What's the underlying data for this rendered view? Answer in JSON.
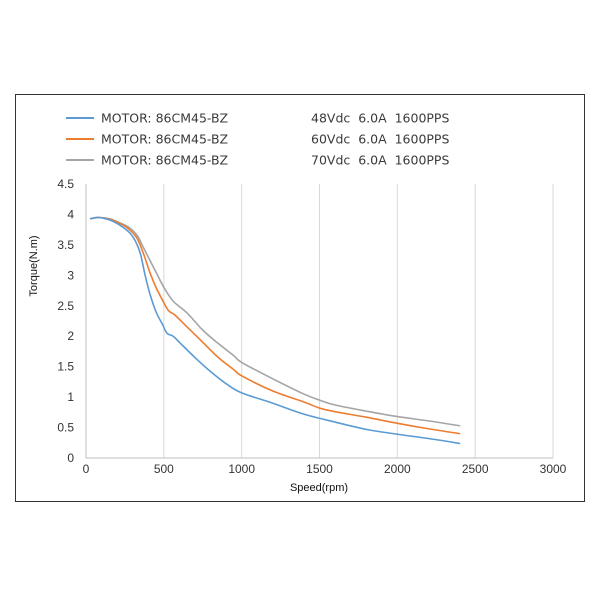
{
  "chart_data": {
    "type": "line",
    "xlabel": "Speed(rpm)",
    "ylabel": "Torque(N.m)",
    "xlim": [
      0,
      3000
    ],
    "ylim": [
      0,
      4.5
    ],
    "x_ticks": [
      "0",
      "500",
      "1000",
      "1500",
      "2000",
      "2500",
      "3000"
    ],
    "y_ticks": [
      "0",
      "0.5",
      "1",
      "1.5",
      "2",
      "2.5",
      "3",
      "3.5",
      "4",
      "4.5"
    ],
    "grid": "vertical",
    "legend_position": "top",
    "series": [
      {
        "name": "MOTOR: 86CM45-BZ",
        "spec": "48Vdc  6.0A  1600PPS",
        "color": "#5b9bd5",
        "points": [
          [
            30,
            3.93
          ],
          [
            80,
            3.95
          ],
          [
            150,
            3.91
          ],
          [
            220,
            3.82
          ],
          [
            280,
            3.7
          ],
          [
            320,
            3.55
          ],
          [
            350,
            3.35
          ],
          [
            380,
            3.0
          ],
          [
            410,
            2.7
          ],
          [
            450,
            2.4
          ],
          [
            490,
            2.2
          ],
          [
            520,
            2.05
          ],
          [
            560,
            2.0
          ],
          [
            600,
            1.9
          ],
          [
            700,
            1.65
          ],
          [
            800,
            1.42
          ],
          [
            900,
            1.22
          ],
          [
            1000,
            1.07
          ],
          [
            1200,
            0.9
          ],
          [
            1400,
            0.72
          ],
          [
            1600,
            0.59
          ],
          [
            1800,
            0.47
          ],
          [
            2000,
            0.39
          ],
          [
            2200,
            0.32
          ],
          [
            2400,
            0.24
          ]
        ]
      },
      {
        "name": "MOTOR: 86CM45-BZ",
        "spec": "60Vdc  6.0A  1600PPS",
        "color": "#ed7d31",
        "points": [
          [
            30,
            3.93
          ],
          [
            80,
            3.95
          ],
          [
            150,
            3.92
          ],
          [
            220,
            3.85
          ],
          [
            280,
            3.75
          ],
          [
            330,
            3.6
          ],
          [
            370,
            3.35
          ],
          [
            410,
            3.05
          ],
          [
            450,
            2.8
          ],
          [
            490,
            2.6
          ],
          [
            530,
            2.42
          ],
          [
            570,
            2.35
          ],
          [
            650,
            2.15
          ],
          [
            750,
            1.9
          ],
          [
            850,
            1.65
          ],
          [
            950,
            1.45
          ],
          [
            1000,
            1.35
          ],
          [
            1200,
            1.1
          ],
          [
            1400,
            0.92
          ],
          [
            1500,
            0.82
          ],
          [
            1600,
            0.76
          ],
          [
            1800,
            0.67
          ],
          [
            2000,
            0.57
          ],
          [
            2200,
            0.48
          ],
          [
            2400,
            0.4
          ]
        ]
      },
      {
        "name": "MOTOR: 86CM45-BZ",
        "spec": "70Vdc  6.0A  1600PPS",
        "color": "#a5a5a5",
        "points": [
          [
            30,
            3.93
          ],
          [
            80,
            3.95
          ],
          [
            150,
            3.93
          ],
          [
            220,
            3.86
          ],
          [
            280,
            3.78
          ],
          [
            330,
            3.65
          ],
          [
            370,
            3.45
          ],
          [
            410,
            3.25
          ],
          [
            450,
            3.05
          ],
          [
            490,
            2.85
          ],
          [
            530,
            2.68
          ],
          [
            570,
            2.55
          ],
          [
            650,
            2.38
          ],
          [
            750,
            2.1
          ],
          [
            850,
            1.88
          ],
          [
            950,
            1.68
          ],
          [
            1000,
            1.57
          ],
          [
            1200,
            1.3
          ],
          [
            1400,
            1.05
          ],
          [
            1500,
            0.95
          ],
          [
            1600,
            0.87
          ],
          [
            1800,
            0.77
          ],
          [
            2000,
            0.68
          ],
          [
            2200,
            0.61
          ],
          [
            2400,
            0.53
          ]
        ]
      }
    ]
  }
}
